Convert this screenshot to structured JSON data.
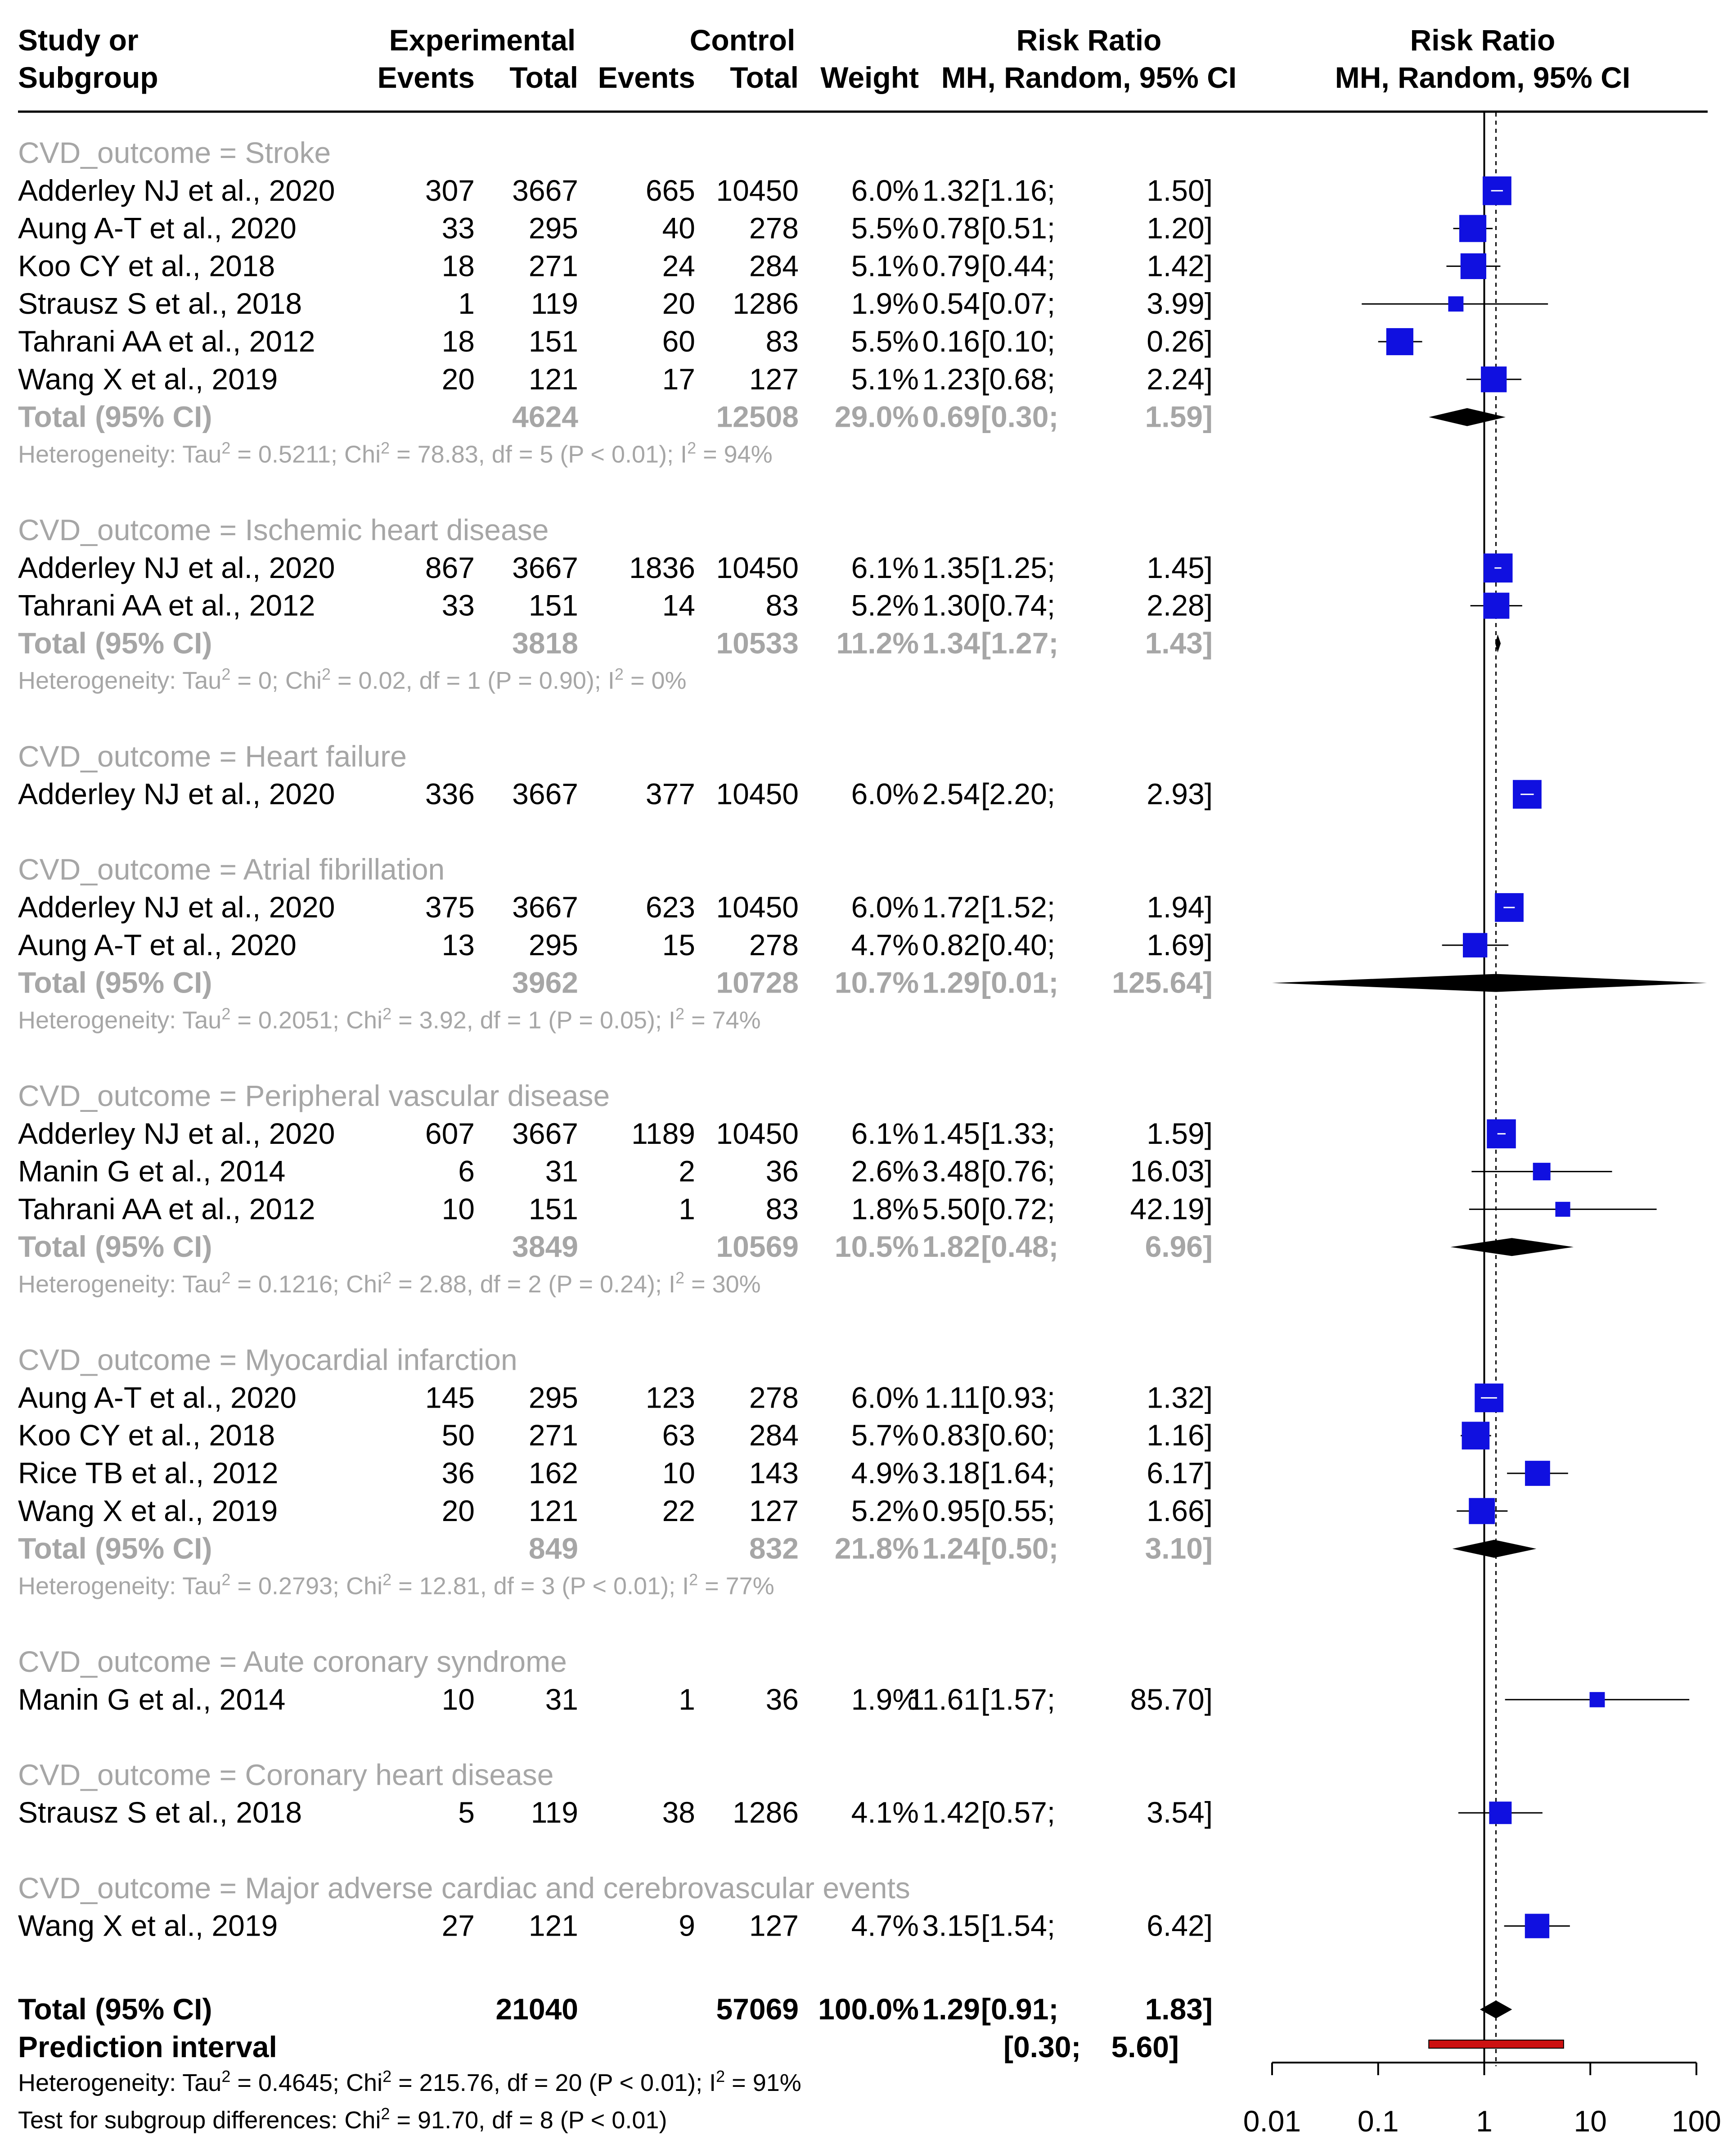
{
  "chart_data": {
    "type": "forest",
    "headers": {
      "study": [
        "Study or",
        "Subgroup"
      ],
      "experimental": "Experimental",
      "control": "Control",
      "events": "Events",
      "total": "Total",
      "weight": "Weight",
      "rr_title": "Risk Ratio",
      "rr_method": "MH, Random, 95% CI"
    },
    "axis": {
      "scale": "log",
      "ticks": [
        0.01,
        0.1,
        1,
        10,
        100
      ],
      "tick_labels": [
        "0.01",
        "0.1",
        "1",
        "10",
        "100"
      ],
      "null_line": 1,
      "overall_line": 1.29
    },
    "colors": {
      "box": "#1010e0",
      "subgroup_text": "#a6a6a6",
      "prediction": "#cc1111",
      "line": "#000000"
    },
    "subgroups": [
      {
        "label": "CVD_outcome = Stroke",
        "studies": [
          {
            "name": "Adderley NJ et al., 2020",
            "e_events": "307",
            "e_total": "3667",
            "c_events": "665",
            "c_total": "10450",
            "weight": "6.0%",
            "est": "1.32",
            "lo": "[1.16;",
            "hi": "1.50]",
            "rr": 1.32,
            "ci_low": 1.16,
            "ci_high": 1.5,
            "w": 6.0
          },
          {
            "name": "Aung A-T et al., 2020",
            "e_events": "33",
            "e_total": "295",
            "c_events": "40",
            "c_total": "278",
            "weight": "5.5%",
            "est": "0.78",
            "lo": "[0.51;",
            "hi": "1.20]",
            "rr": 0.78,
            "ci_low": 0.51,
            "ci_high": 1.2,
            "w": 5.5
          },
          {
            "name": "Koo CY et al., 2018",
            "e_events": "18",
            "e_total": "271",
            "c_events": "24",
            "c_total": "284",
            "weight": "5.1%",
            "est": "0.79",
            "lo": "[0.44;",
            "hi": "1.42]",
            "rr": 0.79,
            "ci_low": 0.44,
            "ci_high": 1.42,
            "w": 5.1
          },
          {
            "name": "Strausz S et al., 2018",
            "e_events": "1",
            "e_total": "119",
            "c_events": "20",
            "c_total": "1286",
            "weight": "1.9%",
            "est": "0.54",
            "lo": "[0.07;",
            "hi": "3.99]",
            "rr": 0.54,
            "ci_low": 0.07,
            "ci_high": 3.99,
            "w": 1.9
          },
          {
            "name": "Tahrani AA et al., 2012",
            "e_events": "18",
            "e_total": "151",
            "c_events": "60",
            "c_total": "83",
            "weight": "5.5%",
            "est": "0.16",
            "lo": "[0.10;",
            "hi": "0.26]",
            "rr": 0.16,
            "ci_low": 0.1,
            "ci_high": 0.26,
            "w": 5.5
          },
          {
            "name": "Wang X et al., 2019",
            "e_events": "20",
            "e_total": "121",
            "c_events": "17",
            "c_total": "127",
            "weight": "5.1%",
            "est": "1.23",
            "lo": "[0.68;",
            "hi": "2.24]",
            "rr": 1.23,
            "ci_low": 0.68,
            "ci_high": 2.24,
            "w": 5.1
          }
        ],
        "total": {
          "label": "Total (95% CI)",
          "e_total": "4624",
          "c_total": "12508",
          "weight": "29.0%",
          "est": "0.69",
          "lo": "[0.30;",
          "hi": "1.59]",
          "rr": 0.69,
          "ci_low": 0.3,
          "ci_high": 1.59
        },
        "heterogeneity": {
          "prefix": "Heterogeneity: Tau",
          "tau": " = 0.5211; Chi",
          "chi": " = 78.83, df = 5 (P < 0.01); I",
          "i": " = 94%"
        }
      },
      {
        "label": "CVD_outcome = Ischemic heart disease",
        "studies": [
          {
            "name": "Adderley NJ et al., 2020",
            "e_events": "867",
            "e_total": "3667",
            "c_events": "1836",
            "c_total": "10450",
            "weight": "6.1%",
            "est": "1.35",
            "lo": "[1.25;",
            "hi": "1.45]",
            "rr": 1.35,
            "ci_low": 1.25,
            "ci_high": 1.45,
            "w": 6.1
          },
          {
            "name": "Tahrani AA et al., 2012",
            "e_events": "33",
            "e_total": "151",
            "c_events": "14",
            "c_total": "83",
            "weight": "5.2%",
            "est": "1.30",
            "lo": "[0.74;",
            "hi": "2.28]",
            "rr": 1.3,
            "ci_low": 0.74,
            "ci_high": 2.28,
            "w": 5.2
          }
        ],
        "total": {
          "label": "Total (95% CI)",
          "e_total": "3818",
          "c_total": "10533",
          "weight": "11.2%",
          "est": "1.34",
          "lo": "[1.27;",
          "hi": "1.43]",
          "rr": 1.34,
          "ci_low": 1.27,
          "ci_high": 1.43
        },
        "heterogeneity": {
          "prefix": "Heterogeneity: Tau",
          "tau": " = 0; Chi",
          "chi": " = 0.02, df = 1 (P = 0.90); I",
          "i": " = 0%"
        }
      },
      {
        "label": "CVD_outcome = Heart failure",
        "studies": [
          {
            "name": "Adderley NJ et al., 2020",
            "e_events": "336",
            "e_total": "3667",
            "c_events": "377",
            "c_total": "10450",
            "weight": "6.0%",
            "est": "2.54",
            "lo": "[2.20;",
            "hi": "2.93]",
            "rr": 2.54,
            "ci_low": 2.2,
            "ci_high": 2.93,
            "w": 6.0
          }
        ]
      },
      {
        "label": "CVD_outcome = Atrial fibrillation",
        "studies": [
          {
            "name": "Adderley NJ et al., 2020",
            "e_events": "375",
            "e_total": "3667",
            "c_events": "623",
            "c_total": "10450",
            "weight": "6.0%",
            "est": "1.72",
            "lo": "[1.52;",
            "hi": "1.94]",
            "rr": 1.72,
            "ci_low": 1.52,
            "ci_high": 1.94,
            "w": 6.0
          },
          {
            "name": "Aung A-T et al., 2020",
            "e_events": "13",
            "e_total": "295",
            "c_events": "15",
            "c_total": "278",
            "weight": "4.7%",
            "est": "0.82",
            "lo": "[0.40;",
            "hi": "1.69]",
            "rr": 0.82,
            "ci_low": 0.4,
            "ci_high": 1.69,
            "w": 4.7
          }
        ],
        "total": {
          "label": "Total (95% CI)",
          "e_total": "3962",
          "c_total": "10728",
          "weight": "10.7%",
          "est": "1.29",
          "lo": "[0.01;",
          "hi": "125.64]",
          "rr": 1.29,
          "ci_low": 0.01,
          "ci_high": 125.64
        },
        "heterogeneity": {
          "prefix": "Heterogeneity: Tau",
          "tau": " = 0.2051; Chi",
          "chi": " = 3.92, df = 1 (P = 0.05); I",
          "i": " = 74%"
        }
      },
      {
        "label": "CVD_outcome = Peripheral vascular disease",
        "studies": [
          {
            "name": "Adderley NJ et al., 2020",
            "e_events": "607",
            "e_total": "3667",
            "c_events": "1189",
            "c_total": "10450",
            "weight": "6.1%",
            "est": "1.45",
            "lo": "[1.33;",
            "hi": "1.59]",
            "rr": 1.45,
            "ci_low": 1.33,
            "ci_high": 1.59,
            "w": 6.1
          },
          {
            "name": "Manin G et al., 2014",
            "e_events": "6",
            "e_total": "31",
            "c_events": "2",
            "c_total": "36",
            "weight": "2.6%",
            "est": "3.48",
            "lo": "[0.76;",
            "hi": "16.03]",
            "rr": 3.48,
            "ci_low": 0.76,
            "ci_high": 16.03,
            "w": 2.6
          },
          {
            "name": "Tahrani AA et al., 2012",
            "e_events": "10",
            "e_total": "151",
            "c_events": "1",
            "c_total": "83",
            "weight": "1.8%",
            "est": "5.50",
            "lo": "[0.72;",
            "hi": "42.19]",
            "rr": 5.5,
            "ci_low": 0.72,
            "ci_high": 42.19,
            "w": 1.8
          }
        ],
        "total": {
          "label": "Total (95% CI)",
          "e_total": "3849",
          "c_total": "10569",
          "weight": "10.5%",
          "est": "1.82",
          "lo": "[0.48;",
          "hi": "6.96]",
          "rr": 1.82,
          "ci_low": 0.48,
          "ci_high": 6.96
        },
        "heterogeneity": {
          "prefix": "Heterogeneity: Tau",
          "tau": " = 0.1216; Chi",
          "chi": " = 2.88, df = 2 (P = 0.24); I",
          "i": " = 30%"
        }
      },
      {
        "label": "CVD_outcome = Myocardial infarction",
        "studies": [
          {
            "name": "Aung A-T et al., 2020",
            "e_events": "145",
            "e_total": "295",
            "c_events": "123",
            "c_total": "278",
            "weight": "6.0%",
            "est": "1.11",
            "lo": "[0.93;",
            "hi": "1.32]",
            "rr": 1.11,
            "ci_low": 0.93,
            "ci_high": 1.32,
            "w": 6.0
          },
          {
            "name": "Koo CY et al., 2018",
            "e_events": "50",
            "e_total": "271",
            "c_events": "63",
            "c_total": "284",
            "weight": "5.7%",
            "est": "0.83",
            "lo": "[0.60;",
            "hi": "1.16]",
            "rr": 0.83,
            "ci_low": 0.6,
            "ci_high": 1.16,
            "w": 5.7
          },
          {
            "name": "Rice TB et al., 2012",
            "e_events": "36",
            "e_total": "162",
            "c_events": "10",
            "c_total": "143",
            "weight": "4.9%",
            "est": "3.18",
            "lo": "[1.64;",
            "hi": "6.17]",
            "rr": 3.18,
            "ci_low": 1.64,
            "ci_high": 6.17,
            "w": 4.9
          },
          {
            "name": "Wang X et al., 2019",
            "e_events": "20",
            "e_total": "121",
            "c_events": "22",
            "c_total": "127",
            "weight": "5.2%",
            "est": "0.95",
            "lo": "[0.55;",
            "hi": "1.66]",
            "rr": 0.95,
            "ci_low": 0.55,
            "ci_high": 1.66,
            "w": 5.2
          }
        ],
        "total": {
          "label": "Total (95% CI)",
          "e_total": "849",
          "c_total": "832",
          "weight": "21.8%",
          "est": "1.24",
          "lo": "[0.50;",
          "hi": "3.10]",
          "rr": 1.24,
          "ci_low": 0.5,
          "ci_high": 3.1
        },
        "heterogeneity": {
          "prefix": "Heterogeneity: Tau",
          "tau": " = 0.2793; Chi",
          "chi": " = 12.81, df = 3 (P < 0.01); I",
          "i": " = 77%"
        }
      },
      {
        "label": "CVD_outcome = Aute coronary syndrome",
        "studies": [
          {
            "name": "Manin G et al., 2014",
            "e_events": "10",
            "e_total": "31",
            "c_events": "1",
            "c_total": "36",
            "weight": "1.9%",
            "est": "11.61",
            "lo": "[1.57;",
            "hi": "85.70]",
            "rr": 11.61,
            "ci_low": 1.57,
            "ci_high": 85.7,
            "w": 1.9
          }
        ]
      },
      {
        "label": "CVD_outcome = Coronary heart disease",
        "studies": [
          {
            "name": "Strausz S et al., 2018",
            "e_events": "5",
            "e_total": "119",
            "c_events": "38",
            "c_total": "1286",
            "weight": "4.1%",
            "est": "1.42",
            "lo": "[0.57;",
            "hi": "3.54]",
            "rr": 1.42,
            "ci_low": 0.57,
            "ci_high": 3.54,
            "w": 4.1
          }
        ]
      },
      {
        "label": "CVD_outcome = Major adverse cardiac and cerebrovascular events",
        "studies": [
          {
            "name": "Wang X et al., 2019",
            "e_events": "27",
            "e_total": "121",
            "c_events": "9",
            "c_total": "127",
            "weight": "4.7%",
            "est": "3.15",
            "lo": "[1.54;",
            "hi": "6.42]",
            "rr": 3.15,
            "ci_low": 1.54,
            "ci_high": 6.42,
            "w": 4.7
          }
        ]
      }
    ],
    "overall": {
      "label": "Total (95% CI)",
      "e_total": "21040",
      "c_total": "57069",
      "weight": "100.0%",
      "est": "1.29",
      "lo": "[0.91;",
      "hi": "1.83]",
      "rr": 1.29,
      "ci_low": 0.91,
      "ci_high": 1.83
    },
    "prediction": {
      "label": "Prediction interval",
      "lo": "[0.30;",
      "hi": "5.60]",
      "low": 0.3,
      "high": 5.6
    },
    "overall_heterogeneity": {
      "prefix": "Heterogeneity: Tau",
      "tau": " = 0.4645; Chi",
      "chi": " = 215.76, df = 20 (P < 0.01); I",
      "i": " = 91%"
    },
    "subgroup_test": {
      "prefix": "Test for subgroup differences: Chi",
      "rest": " = 91.70, df = 8 (P < 0.01)"
    }
  }
}
